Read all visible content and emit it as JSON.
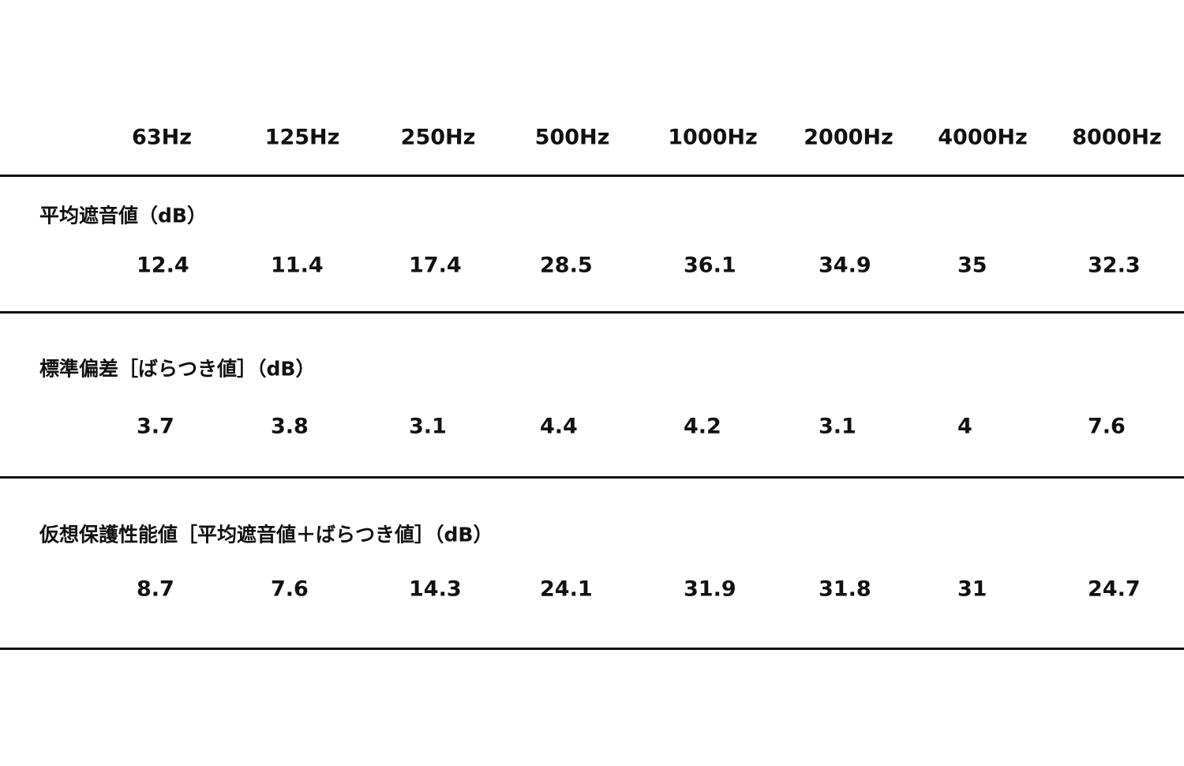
{
  "table": {
    "columns": [
      "63Hz",
      "125Hz",
      "250Hz",
      "500Hz",
      "1000Hz",
      "2000Hz",
      "4000Hz",
      "8000Hz"
    ],
    "rows": [
      {
        "label": "平均遮音値（dB）",
        "values": [
          12.4,
          11.4,
          17.4,
          28.5,
          36.1,
          34.9,
          35,
          32.3
        ]
      },
      {
        "label": "標準偏差［ばらつき値］（dB）",
        "values": [
          3.7,
          3.8,
          3.1,
          4.4,
          4.2,
          3.1,
          4,
          7.6
        ]
      },
      {
        "label": "仮想保護性能値［平均遮音値＋ばらつき値］（dB）",
        "values": [
          8.7,
          7.6,
          14.3,
          24.1,
          31.9,
          31.8,
          31,
          24.7
        ]
      }
    ]
  }
}
